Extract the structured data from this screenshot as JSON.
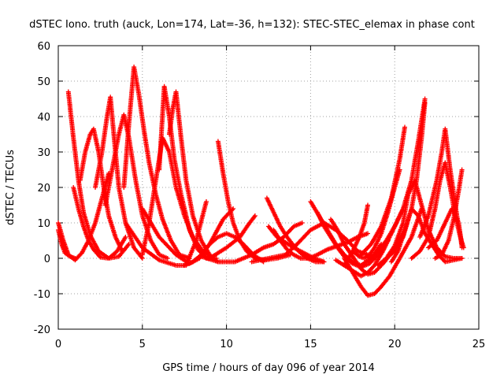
{
  "chart_data": {
    "type": "scatter",
    "title": "dSTEC Iono. truth (auck, Lon=174, Lat=-36, h=132): STEC-STEC_elemax in phase cont",
    "xlabel": "GPS time / hours of day 096 of year 2014",
    "ylabel": "dSTEC  / TECUs",
    "xlim": [
      0,
      25
    ],
    "ylim": [
      -20,
      60
    ],
    "xticks": [
      0,
      5,
      10,
      15,
      20,
      25
    ],
    "yticks": [
      -20,
      -10,
      0,
      10,
      20,
      30,
      40,
      50,
      60
    ],
    "grid": true,
    "legend": "none",
    "marker": "+",
    "color": "#ff0000",
    "series": [
      {
        "x": [
          0.0,
          0.3,
          0.6,
          1.0,
          1.4,
          1.8,
          2.2,
          2.6,
          3.0
        ],
        "y": [
          10.0,
          5.0,
          1.0,
          -0.5,
          1.5,
          5.0,
          10.0,
          17.0,
          24.0
        ]
      },
      {
        "x": [
          0.0,
          0.2,
          0.4,
          0.7,
          1.0
        ],
        "y": [
          8.0,
          4.0,
          1.5,
          0.5,
          0.0
        ]
      },
      {
        "x": [
          0.6,
          0.9,
          1.2,
          1.5,
          1.9,
          2.4,
          3.0,
          3.6,
          4.2
        ],
        "y": [
          47.0,
          34.0,
          22.0,
          13.0,
          6.5,
          2.0,
          0.0,
          0.5,
          4.0
        ]
      },
      {
        "x": [
          0.9,
          1.2,
          1.5,
          1.8,
          2.1,
          2.5,
          3.0,
          3.5,
          4.0
        ],
        "y": [
          20.0,
          14.0,
          9.0,
          5.0,
          2.5,
          0.3,
          0.0,
          2.0,
          6.0
        ]
      },
      {
        "x": [
          1.3,
          1.6,
          1.9,
          2.1,
          2.4,
          2.7,
          3.0,
          3.4,
          3.8
        ],
        "y": [
          22.0,
          30.0,
          35.0,
          36.5,
          30.0,
          20.0,
          12.0,
          6.0,
          2.0
        ]
      },
      {
        "x": [
          2.2,
          2.6,
          2.9,
          3.1,
          3.3,
          3.6,
          4.0,
          4.5,
          5.0
        ],
        "y": [
          20.0,
          30.0,
          40.0,
          45.5,
          35.0,
          20.0,
          10.0,
          3.0,
          0.0
        ]
      },
      {
        "x": [
          2.8,
          3.2,
          3.6,
          3.9,
          4.2,
          4.6,
          5.0,
          5.5,
          6.0,
          6.5
        ],
        "y": [
          15.0,
          25.0,
          35.0,
          40.5,
          34.0,
          22.0,
          12.0,
          5.0,
          1.0,
          0.0
        ]
      },
      {
        "x": [
          3.9,
          4.2,
          4.5,
          4.8,
          5.1,
          5.4,
          5.8,
          6.2,
          6.7,
          7.2,
          7.8
        ],
        "y": [
          20.0,
          38.0,
          54.0,
          46.0,
          36.0,
          27.0,
          18.0,
          11.0,
          5.0,
          1.0,
          0.0
        ]
      },
      {
        "x": [
          5.0,
          5.4,
          5.8,
          6.2,
          6.6,
          7.0,
          7.5,
          8.0,
          8.6,
          9.2
        ],
        "y": [
          1.0,
          10.0,
          22.0,
          34.0,
          30.0,
          20.0,
          12.0,
          6.0,
          2.0,
          0.0
        ]
      },
      {
        "x": [
          6.0,
          6.3,
          6.6,
          6.9,
          7.3,
          7.8,
          8.3,
          8.8,
          9.4
        ],
        "y": [
          25.0,
          48.5,
          40.0,
          28.0,
          18.0,
          8.0,
          2.5,
          0.0,
          0.0
        ]
      },
      {
        "x": [
          6.6,
          6.8,
          7.0,
          7.3,
          7.6,
          8.0,
          8.5,
          9.0,
          9.5
        ],
        "y": [
          35.0,
          42.0,
          47.0,
          34.0,
          22.0,
          12.0,
          5.0,
          1.0,
          -1.0
        ]
      },
      {
        "x": [
          4.0,
          5.0,
          6.0,
          7.0,
          7.6,
          8.2,
          8.8
        ],
        "y": [
          10.0,
          3.0,
          -0.5,
          -2.0,
          -2.0,
          5.0,
          16.0
        ]
      },
      {
        "x": [
          5.0,
          6.0,
          7.0,
          7.8,
          8.4,
          9.0,
          9.8,
          10.4
        ],
        "y": [
          14.0,
          6.0,
          1.0,
          -1.5,
          0.0,
          4.0,
          11.0,
          14.0
        ]
      },
      {
        "x": [
          7.5,
          8.0,
          8.5,
          9.0,
          9.5,
          10.0,
          10.5,
          11.0,
          11.6,
          12.2
        ],
        "y": [
          -2.0,
          -1.0,
          1.0,
          4.0,
          6.0,
          7.0,
          6.0,
          4.0,
          1.0,
          -1.0
        ]
      },
      {
        "x": [
          9.5,
          9.8,
          10.1,
          10.4,
          10.8,
          11.2,
          11.7,
          12.3,
          13.0,
          13.8
        ],
        "y": [
          33.0,
          24.0,
          16.0,
          10.0,
          5.0,
          2.0,
          0.0,
          -0.5,
          0.0,
          1.0
        ]
      },
      {
        "x": [
          8.5,
          9.5,
          10.5,
          11.5,
          12.2,
          12.8,
          13.4,
          14.0,
          14.5
        ],
        "y": [
          0.5,
          -1.0,
          -1.0,
          1.0,
          3.0,
          4.0,
          6.0,
          9.0,
          10.0
        ]
      },
      {
        "x": [
          9.0,
          10.0,
          10.8,
          11.3,
          11.7
        ],
        "y": [
          0.0,
          3.0,
          6.0,
          9.5,
          12.0
        ]
      },
      {
        "x": [
          12.4,
          12.8,
          13.2,
          13.6,
          14.0,
          14.4,
          14.8,
          15.3,
          15.8
        ],
        "y": [
          17.0,
          13.0,
          9.0,
          6.0,
          3.5,
          1.5,
          0.0,
          -1.0,
          -1.0
        ]
      },
      {
        "x": [
          12.5,
          13.0,
          13.5,
          14.0,
          14.6,
          15.2,
          15.8
        ],
        "y": [
          9.0,
          6.0,
          4.5,
          3.0,
          1.5,
          0.0,
          -1.0
        ]
      },
      {
        "x": [
          12.8,
          13.2,
          13.6,
          14.0,
          14.4,
          14.9,
          15.4,
          16.0,
          16.6,
          17.2,
          17.8,
          18.4
        ],
        "y": [
          8.0,
          5.0,
          2.5,
          1.0,
          0.0,
          0.0,
          1.0,
          2.5,
          3.5,
          4.5,
          6.0,
          7.0
        ]
      },
      {
        "x": [
          11.5,
          12.5,
          13.5,
          14.2,
          15.0,
          15.8,
          16.5,
          17.2,
          17.8,
          18.4
        ],
        "y": [
          -1.0,
          0.0,
          1.0,
          4.0,
          8.0,
          10.0,
          8.0,
          5.0,
          2.0,
          1.0
        ]
      },
      {
        "x": [
          15.0,
          15.5,
          16.0,
          16.5,
          17.0,
          17.5,
          18.0,
          18.6,
          19.2
        ],
        "y": [
          16.0,
          12.0,
          8.0,
          4.0,
          1.0,
          -1.0,
          -2.0,
          0.0,
          4.0
        ]
      },
      {
        "x": [
          15.4,
          15.8,
          16.2,
          16.6,
          17.0,
          17.5,
          18.0,
          18.5,
          19.0,
          19.6
        ],
        "y": [
          13.0,
          9.0,
          6.0,
          3.0,
          0.5,
          -1.5,
          -2.5,
          -1.5,
          1.0,
          5.0
        ]
      },
      {
        "x": [
          16.2,
          16.6,
          17.0,
          17.5,
          18.0,
          18.4,
          18.8,
          19.4,
          20.0,
          20.6
        ],
        "y": [
          11.0,
          8.0,
          4.0,
          0.5,
          -3.0,
          -4.5,
          -4.0,
          -1.0,
          3.0,
          8.0
        ]
      },
      {
        "x": [
          17.0,
          17.5,
          18.0,
          18.4,
          18.8,
          19.2,
          19.7,
          20.3,
          21.0,
          21.6
        ],
        "y": [
          0.0,
          -4.0,
          -8.0,
          -10.5,
          -10.0,
          -8.0,
          -5.0,
          0.0,
          6.0,
          14.0
        ]
      },
      {
        "x": [
          16.5,
          17.0,
          17.5,
          18.0,
          18.4,
          18.8,
          19.3,
          19.9,
          20.5
        ],
        "y": [
          -0.5,
          -2.0,
          -3.5,
          -5.0,
          -4.0,
          -2.0,
          2.0,
          8.0,
          14.0
        ]
      },
      {
        "x": [
          17.5,
          17.9,
          18.2,
          18.5,
          18.8,
          19.2,
          19.6,
          20.0,
          20.3
        ],
        "y": [
          2.0,
          0.5,
          0.0,
          1.0,
          3.0,
          7.0,
          13.0,
          20.0,
          25.0
        ]
      },
      {
        "x": [
          17.0,
          17.5,
          17.9,
          18.2,
          18.4
        ],
        "y": [
          -2.0,
          2.0,
          6.0,
          10.0,
          15.0
        ]
      },
      {
        "x": [
          18.0,
          18.6,
          19.2,
          19.8,
          20.3,
          20.6
        ],
        "y": [
          1.0,
          4.0,
          9.0,
          17.0,
          28.0,
          37.0
        ]
      },
      {
        "x": [
          18.5,
          19.0,
          19.5,
          20.0,
          20.5,
          21.0,
          21.4,
          21.8
        ],
        "y": [
          0.0,
          2.0,
          5.0,
          9.0,
          14.0,
          22.0,
          33.0,
          45.0
        ]
      },
      {
        "x": [
          19.5,
          20.0,
          20.5,
          21.0,
          21.3,
          21.6,
          21.8
        ],
        "y": [
          0.0,
          2.0,
          6.0,
          14.0,
          22.0,
          34.0,
          44.0
        ]
      },
      {
        "x": [
          19.0,
          19.5,
          20.0,
          20.5,
          20.8,
          21.2,
          21.6,
          22.0,
          22.5,
          23.0,
          23.5,
          24.0
        ],
        "y": [
          -2.0,
          0.0,
          3.5,
          10.0,
          18.0,
          22.0,
          15.0,
          8.0,
          3.0,
          0.5,
          0.0,
          0.0
        ]
      },
      {
        "x": [
          19.8,
          20.2,
          20.6,
          21.0,
          21.4,
          21.8,
          22.2,
          22.6,
          23.0,
          23.5,
          24.0
        ],
        "y": [
          -1.0,
          2.0,
          8.0,
          14.0,
          12.0,
          7.0,
          4.0,
          1.0,
          -1.0,
          -0.5,
          0.0
        ]
      },
      {
        "x": [
          21.0,
          21.5,
          22.0,
          22.4,
          22.7,
          23.0,
          23.3,
          23.6,
          23.9,
          24.1
        ],
        "y": [
          0.0,
          2.0,
          6.0,
          14.0,
          22.0,
          27.0,
          20.0,
          12.0,
          6.0,
          3.0
        ]
      },
      {
        "x": [
          21.5,
          22.0,
          22.5,
          22.8,
          23.0,
          23.3,
          23.7,
          24.0
        ],
        "y": [
          6.0,
          12.0,
          22.0,
          30.0,
          36.5,
          25.0,
          12.0,
          4.0
        ]
      },
      {
        "x": [
          22.4,
          22.8,
          23.2,
          23.5,
          23.8,
          24.0
        ],
        "y": [
          0.0,
          1.0,
          5.0,
          11.0,
          19.0,
          25.0
        ]
      },
      {
        "x": [
          22.0,
          22.5,
          23.0,
          23.4,
          23.8,
          24.0
        ],
        "y": [
          3.0,
          5.0,
          10.0,
          14.0,
          10.0,
          3.0
        ]
      }
    ]
  }
}
